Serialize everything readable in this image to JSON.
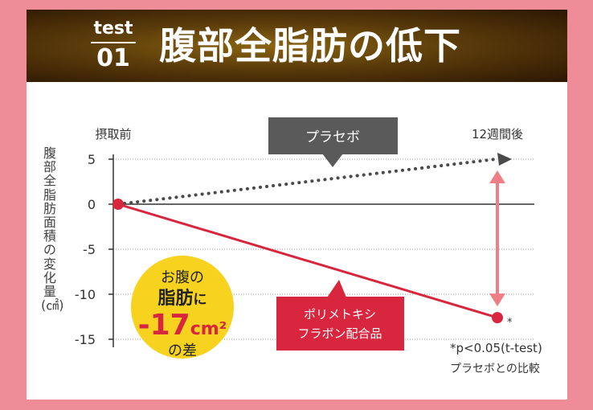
{
  "header": {
    "test_word": "test",
    "test_number": "01",
    "title": "腹部全脂肪の低下"
  },
  "chart_data": {
    "type": "line",
    "x": [
      "摂取前",
      "12週間後"
    ],
    "ylabel": "腹部全脂肪面積の変化量(㎠)",
    "ylim": [
      -15,
      5
    ],
    "yticks": [
      5,
      0,
      -5,
      -10,
      -15
    ],
    "series": [
      {
        "name": "プラセボ",
        "values": [
          0,
          5
        ],
        "color": "#4a4a4a",
        "style": "dotted"
      },
      {
        "name": "ポリメトキシフラボン配合品",
        "values": [
          0,
          -12.6
        ],
        "color": "#d7263d",
        "style": "solid"
      }
    ],
    "legend_callouts": [
      {
        "series": 0,
        "lines": [
          "プラセボ"
        ],
        "bg": "#5a5a5a"
      },
      {
        "series": 1,
        "lines": [
          "ポリメトキシ",
          "フラボン配合品"
        ],
        "bg": "#d7263d"
      }
    ],
    "significance_mark": "*",
    "badge": {
      "line1": "お腹の",
      "line2_strong": "脂肪",
      "line2_rest": "に",
      "value": "-17",
      "unit": "cm²",
      "line4": "の差"
    }
  },
  "notes": {
    "pvalue": "*p<0.05(t-test)",
    "comparison": "プラセボとの比較"
  }
}
